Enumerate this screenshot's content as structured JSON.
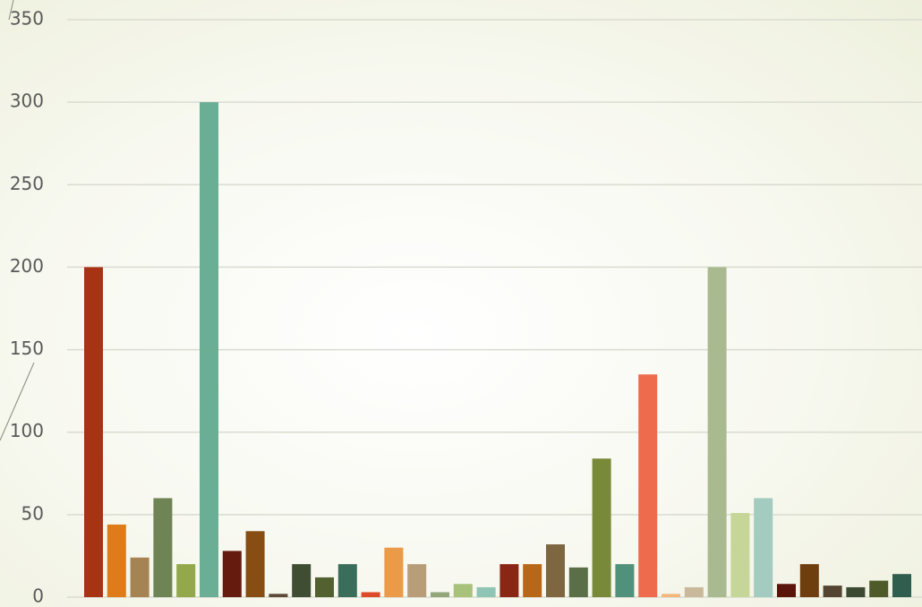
{
  "chart_data": {
    "type": "bar",
    "categories": [
      null,
      null,
      null,
      null,
      null,
      null,
      null,
      null,
      null,
      null,
      null,
      null,
      null,
      null,
      null,
      null,
      null,
      null,
      null,
      null,
      null,
      null,
      null,
      null,
      null,
      null,
      null,
      null,
      null,
      null,
      null,
      null,
      null,
      null,
      null,
      null
    ],
    "values": [
      200,
      44,
      24,
      60,
      20,
      300,
      28,
      40,
      2,
      20,
      12,
      20,
      3,
      30,
      20,
      3,
      8,
      6,
      20,
      20,
      32,
      18,
      84,
      20,
      135,
      2,
      6,
      200,
      51,
      60,
      8,
      20,
      7,
      6,
      10,
      14
    ],
    "colors": [
      "#a83214",
      "#e07b1a",
      "#a58352",
      "#6f8454",
      "#93a84a",
      "#6aaf95",
      "#651b0e",
      "#874d12",
      "#5a4a36",
      "#3f4d33",
      "#536130",
      "#3b6e5a",
      "#de4a28",
      "#eb9a48",
      "#b89e78",
      "#93a57b",
      "#a9c27a",
      "#8ec5b4",
      "#8a2714",
      "#b86618",
      "#7d6640",
      "#5a6e47",
      "#788a3a",
      "#4f917a",
      "#ee6b4d",
      "#f3b77e",
      "#cab89b",
      "#a9ba91",
      "#c5d698",
      "#a3cbbf",
      "#5a1508",
      "#6e3e0e",
      "#544533",
      "#3b4a30",
      "#4e5a2a",
      "#2f5e4e"
    ],
    "ylim": [
      0,
      350
    ],
    "yticks": [
      0,
      50,
      100,
      150,
      200,
      250,
      300,
      350
    ],
    "grid": true
  }
}
